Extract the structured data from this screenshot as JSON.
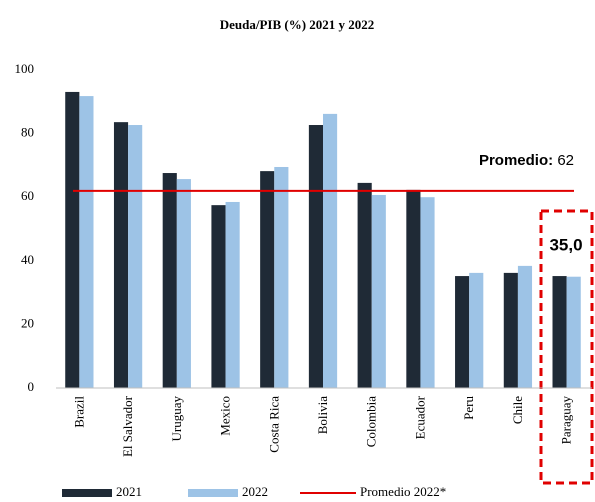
{
  "chart_data": {
    "type": "bar",
    "title": "Deuda/PIB (%) 2021 y 2022",
    "categories": [
      "Brazil",
      "El Salvador",
      "Uruguay",
      "Mexico",
      "Costa Rica",
      "Bolivia",
      "Colombia",
      "Ecuador",
      "Peru",
      "Chile",
      "Paraguay"
    ],
    "series": [
      {
        "name": "2021",
        "color": "#1f2a36",
        "values": [
          93.1,
          83.6,
          67.6,
          57.5,
          68.2,
          82.7,
          64.5,
          62.3,
          35.2,
          36.2,
          35.2
        ]
      },
      {
        "name": "2022",
        "color": "#9dc3e6",
        "values": [
          91.8,
          82.7,
          65.7,
          58.5,
          69.5,
          86.2,
          60.7,
          60.0,
          36.2,
          38.4,
          35.0
        ]
      }
    ],
    "average": {
      "name": "Promedio 2022*",
      "color": "#e00000",
      "value": 62,
      "label": "Promedio:"
    },
    "annotations": [
      {
        "text": "35,0"
      }
    ],
    "ylim": [
      0,
      100
    ],
    "yticks": [
      0,
      20,
      40,
      60,
      80,
      100
    ],
    "grid": false
  }
}
